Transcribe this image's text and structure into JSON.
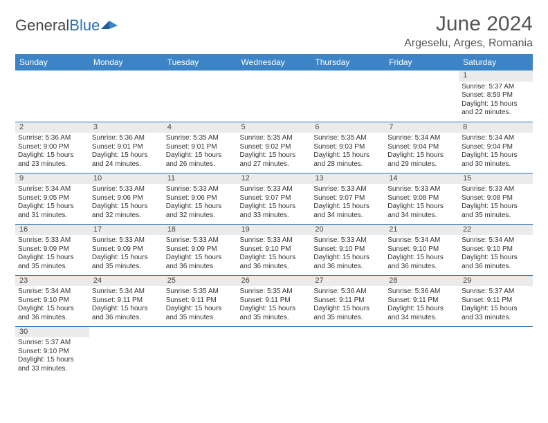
{
  "brand": {
    "part1": "General",
    "part2": "Blue"
  },
  "title": "June 2024",
  "location": "Argeselu, Arges, Romania",
  "colors": {
    "header_bg": "#3d84c6",
    "header_text": "#ffffff",
    "row_border": "#2a6fb5",
    "daynum_bg": "#ebebeb",
    "logo_blue": "#2a6fb5",
    "text": "#333333",
    "title_color": "#555555"
  },
  "weekday_labels": [
    "Sunday",
    "Monday",
    "Tuesday",
    "Wednesday",
    "Thursday",
    "Friday",
    "Saturday"
  ],
  "first_weekday_index": 6,
  "days": [
    {
      "n": 1,
      "sunrise": "5:37 AM",
      "sunset": "8:59 PM",
      "daylight": "15 hours and 22 minutes."
    },
    {
      "n": 2,
      "sunrise": "5:36 AM",
      "sunset": "9:00 PM",
      "daylight": "15 hours and 23 minutes."
    },
    {
      "n": 3,
      "sunrise": "5:36 AM",
      "sunset": "9:01 PM",
      "daylight": "15 hours and 24 minutes."
    },
    {
      "n": 4,
      "sunrise": "5:35 AM",
      "sunset": "9:01 PM",
      "daylight": "15 hours and 26 minutes."
    },
    {
      "n": 5,
      "sunrise": "5:35 AM",
      "sunset": "9:02 PM",
      "daylight": "15 hours and 27 minutes."
    },
    {
      "n": 6,
      "sunrise": "5:35 AM",
      "sunset": "9:03 PM",
      "daylight": "15 hours and 28 minutes."
    },
    {
      "n": 7,
      "sunrise": "5:34 AM",
      "sunset": "9:04 PM",
      "daylight": "15 hours and 29 minutes."
    },
    {
      "n": 8,
      "sunrise": "5:34 AM",
      "sunset": "9:04 PM",
      "daylight": "15 hours and 30 minutes."
    },
    {
      "n": 9,
      "sunrise": "5:34 AM",
      "sunset": "9:05 PM",
      "daylight": "15 hours and 31 minutes."
    },
    {
      "n": 10,
      "sunrise": "5:33 AM",
      "sunset": "9:06 PM",
      "daylight": "15 hours and 32 minutes."
    },
    {
      "n": 11,
      "sunrise": "5:33 AM",
      "sunset": "9:06 PM",
      "daylight": "15 hours and 32 minutes."
    },
    {
      "n": 12,
      "sunrise": "5:33 AM",
      "sunset": "9:07 PM",
      "daylight": "15 hours and 33 minutes."
    },
    {
      "n": 13,
      "sunrise": "5:33 AM",
      "sunset": "9:07 PM",
      "daylight": "15 hours and 34 minutes."
    },
    {
      "n": 14,
      "sunrise": "5:33 AM",
      "sunset": "9:08 PM",
      "daylight": "15 hours and 34 minutes."
    },
    {
      "n": 15,
      "sunrise": "5:33 AM",
      "sunset": "9:08 PM",
      "daylight": "15 hours and 35 minutes."
    },
    {
      "n": 16,
      "sunrise": "5:33 AM",
      "sunset": "9:09 PM",
      "daylight": "15 hours and 35 minutes."
    },
    {
      "n": 17,
      "sunrise": "5:33 AM",
      "sunset": "9:09 PM",
      "daylight": "15 hours and 35 minutes."
    },
    {
      "n": 18,
      "sunrise": "5:33 AM",
      "sunset": "9:09 PM",
      "daylight": "15 hours and 36 minutes."
    },
    {
      "n": 19,
      "sunrise": "5:33 AM",
      "sunset": "9:10 PM",
      "daylight": "15 hours and 36 minutes."
    },
    {
      "n": 20,
      "sunrise": "5:33 AM",
      "sunset": "9:10 PM",
      "daylight": "15 hours and 36 minutes."
    },
    {
      "n": 21,
      "sunrise": "5:34 AM",
      "sunset": "9:10 PM",
      "daylight": "15 hours and 36 minutes."
    },
    {
      "n": 22,
      "sunrise": "5:34 AM",
      "sunset": "9:10 PM",
      "daylight": "15 hours and 36 minutes."
    },
    {
      "n": 23,
      "sunrise": "5:34 AM",
      "sunset": "9:10 PM",
      "daylight": "15 hours and 36 minutes."
    },
    {
      "n": 24,
      "sunrise": "5:34 AM",
      "sunset": "9:11 PM",
      "daylight": "15 hours and 36 minutes."
    },
    {
      "n": 25,
      "sunrise": "5:35 AM",
      "sunset": "9:11 PM",
      "daylight": "15 hours and 35 minutes."
    },
    {
      "n": 26,
      "sunrise": "5:35 AM",
      "sunset": "9:11 PM",
      "daylight": "15 hours and 35 minutes."
    },
    {
      "n": 27,
      "sunrise": "5:36 AM",
      "sunset": "9:11 PM",
      "daylight": "15 hours and 35 minutes."
    },
    {
      "n": 28,
      "sunrise": "5:36 AM",
      "sunset": "9:11 PM",
      "daylight": "15 hours and 34 minutes."
    },
    {
      "n": 29,
      "sunrise": "5:37 AM",
      "sunset": "9:11 PM",
      "daylight": "15 hours and 33 minutes."
    },
    {
      "n": 30,
      "sunrise": "5:37 AM",
      "sunset": "9:10 PM",
      "daylight": "15 hours and 33 minutes."
    }
  ],
  "labels": {
    "sunrise_prefix": "Sunrise: ",
    "sunset_prefix": "Sunset: ",
    "daylight_prefix": "Daylight: "
  }
}
